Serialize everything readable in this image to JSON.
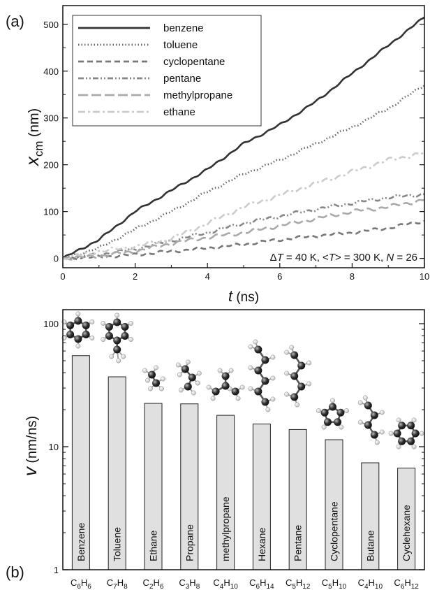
{
  "chart_data": [
    {
      "type": "line",
      "panel_label": "(a)",
      "xlabel": "t",
      "xlabel_unit": " (ns)",
      "ylabel_main": "x",
      "ylabel_sub": "cm",
      "ylabel_unit": " (nm)",
      "xlim": [
        0,
        10
      ],
      "ylim": [
        -20,
        540
      ],
      "xticks": [
        0,
        2,
        4,
        6,
        8,
        10
      ],
      "yticks": [
        0,
        100,
        200,
        300,
        400,
        500
      ],
      "legend_position": "top-left",
      "annotation": {
        "delta": "Δ",
        "dT_var": "T",
        "dT_val": " = 40 K, <",
        "T_var": "T",
        "T_val": "> = 300 K, ",
        "N_var": "N",
        "N_val": " = 26"
      },
      "x": [
        0,
        1,
        2,
        3,
        4,
        5,
        6,
        7,
        8,
        9,
        10
      ],
      "series": [
        {
          "name": "benzene",
          "color": "#333333",
          "dash": "solid",
          "values": [
            0,
            40,
            100,
            145,
            190,
            245,
            285,
            335,
            395,
            455,
            515
          ]
        },
        {
          "name": "toluene",
          "color": "#666666",
          "dash": "dotted",
          "values": [
            0,
            22,
            62,
            100,
            142,
            180,
            210,
            245,
            280,
            320,
            370
          ]
        },
        {
          "name": "cyclopentane",
          "color": "#777777",
          "dash": "dashed",
          "values": [
            0,
            3,
            8,
            15,
            22,
            30,
            40,
            48,
            55,
            65,
            80
          ]
        },
        {
          "name": "pentane",
          "color": "#888888",
          "dash": "dashdotdot",
          "values": [
            0,
            8,
            20,
            38,
            55,
            75,
            90,
            105,
            118,
            130,
            137
          ]
        },
        {
          "name": "methylpropane",
          "color": "#aaaaaa",
          "dash": "longdash",
          "values": [
            0,
            5,
            15,
            32,
            45,
            55,
            70,
            85,
            100,
            110,
            125
          ]
        },
        {
          "name": "ethane",
          "color": "#cccccc",
          "dash": "dashdot",
          "values": [
            0,
            15,
            25,
            42,
            75,
            110,
            135,
            160,
            185,
            210,
            225
          ]
        }
      ]
    },
    {
      "type": "bar",
      "panel_label": "(b)",
      "ylabel": "v",
      "ylabel_unit": " (nm/ns)",
      "yscale": "log",
      "ylim": [
        1,
        130
      ],
      "yticks": [
        1,
        10,
        100
      ],
      "ytick_labels": [
        "1",
        "10",
        "100"
      ],
      "bar_color": "#e0e0e0",
      "categories": [
        "Benzene",
        "Toluene",
        "Ethane",
        "Propane",
        "methylpropane",
        "Hexane",
        "Pentane",
        "Cyclopentane",
        "Butane",
        "Cyclehexane"
      ],
      "formulas": [
        {
          "c": "C",
          "cn": "6",
          "h": "H",
          "hn": "6"
        },
        {
          "c": "C",
          "cn": "7",
          "h": "H",
          "hn": "8"
        },
        {
          "c": "C",
          "cn": "2",
          "h": "H",
          "hn": "6"
        },
        {
          "c": "C",
          "cn": "3",
          "h": "H",
          "hn": "8"
        },
        {
          "c": "C",
          "cn": "4",
          "h": "H",
          "hn": "10"
        },
        {
          "c": "C",
          "cn": "6",
          "h": "H",
          "hn": "14"
        },
        {
          "c": "C",
          "cn": "5",
          "h": "H",
          "hn": "12"
        },
        {
          "c": "C",
          "cn": "5",
          "h": "H",
          "hn": "10"
        },
        {
          "c": "C",
          "cn": "4",
          "h": "H",
          "hn": "10"
        },
        {
          "c": "C",
          "cn": "6",
          "h": "H",
          "hn": "12"
        }
      ],
      "values": [
        55,
        37,
        22.5,
        22.3,
        18,
        15.3,
        13.8,
        11.4,
        7.4,
        6.7
      ]
    }
  ]
}
